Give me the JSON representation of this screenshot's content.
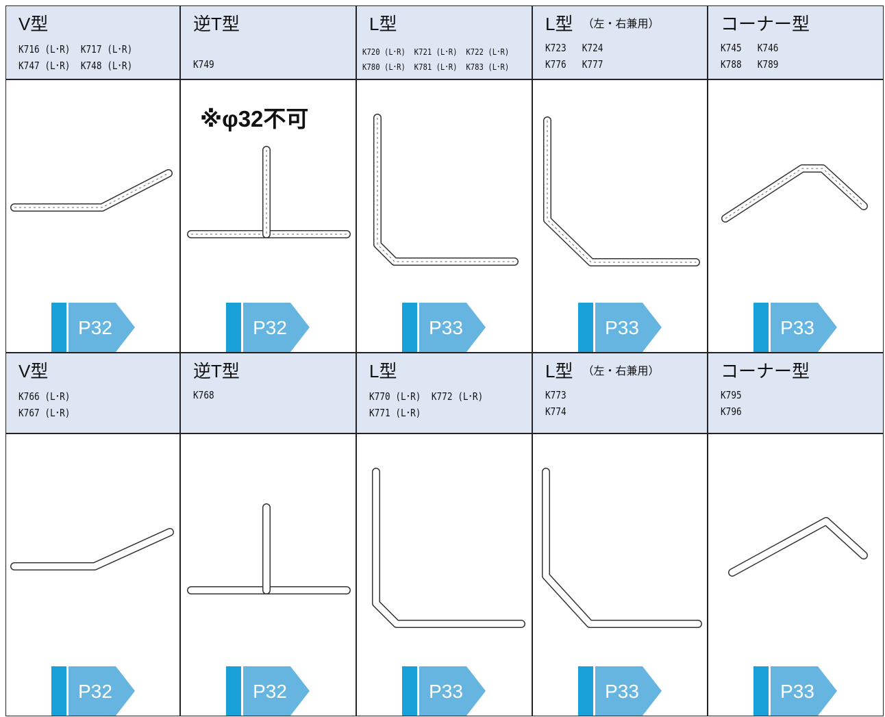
{
  "rows": [
    {
      "cells": [
        {
          "title": "V型",
          "codes": [
            "K716 (L･R)  K717 (L･R)",
            "K747 (L･R)  K748 (L･R)"
          ],
          "page": "P32"
        },
        {
          "title": "逆T型",
          "codes": [
            "",
            "K749"
          ],
          "note": "※φ32不可",
          "page": "P32"
        },
        {
          "title": "L型",
          "codes": [
            "K720 (L･R)  K721 (L･R)  K722 (L･R)",
            "K780 (L･R)  K781 (L･R)  K783 (L･R)"
          ],
          "page": "P33"
        },
        {
          "title": "L型",
          "title_note": "（左・右兼用）",
          "codes": [
            "K723   K724",
            "K776   K777"
          ],
          "page": "P33"
        },
        {
          "title": "コーナー型",
          "codes": [
            "K745   K746",
            "K788   K789"
          ],
          "page": "P33"
        }
      ]
    },
    {
      "cells": [
        {
          "title": "V型",
          "codes": [
            "K766 (L･R)",
            "K767 (L･R)"
          ],
          "page": "P32"
        },
        {
          "title": "逆T型",
          "codes": [
            "K768"
          ],
          "page": "P32"
        },
        {
          "title": "L型",
          "codes": [
            "K770 (L･R)  K772 (L･R)",
            "K771 (L･R)"
          ],
          "page": "P33"
        },
        {
          "title": "L型",
          "title_note": "（左・右兼用）",
          "codes": [
            "K773",
            "K774"
          ],
          "page": "P33"
        },
        {
          "title": "コーナー型",
          "codes": [
            "K795",
            "K796"
          ],
          "page": "P33"
        }
      ]
    }
  ]
}
